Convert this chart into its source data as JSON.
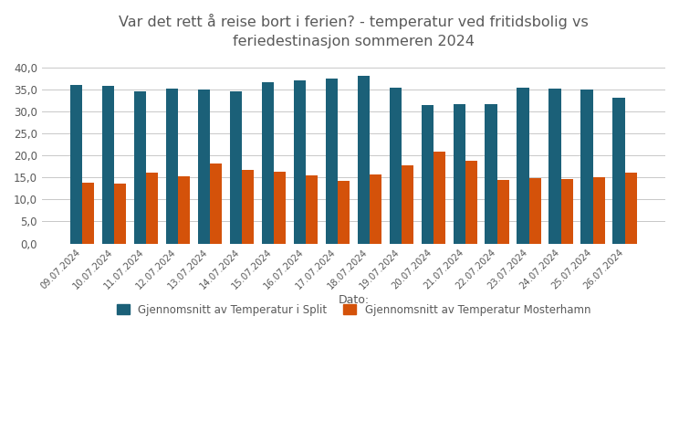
{
  "title": "Var det rett å reise bort i ferien? - temperatur ved fritidsbolig vs\nferiedestinasjon sommeren 2024",
  "xlabel": "Dato:",
  "split_label": "Gjennomsnitt av Temperatur i Split",
  "mosterhamn_label": "Gjennomsnitt av Temperatur Mosterhamn",
  "dates": [
    "09.07.2024",
    "10.07.2024",
    "11.07.2024",
    "12.07.2024",
    "13.07.2024",
    "14.07.2024",
    "15.07.2024",
    "16.07.2024",
    "17.07.2024",
    "18.07.2024",
    "19.07.2024",
    "20.07.2024",
    "21.07.2024",
    "22.07.2024",
    "23.07.2024",
    "24.07.2024",
    "25.07.2024",
    "26.07.2024"
  ],
  "split_temps": [
    36.0,
    35.7,
    34.5,
    35.2,
    35.0,
    34.5,
    36.5,
    37.0,
    37.5,
    38.0,
    35.4,
    31.5,
    31.6,
    31.6,
    35.3,
    35.1,
    34.9,
    33.0
  ],
  "mosterhamn_temps": [
    13.8,
    13.6,
    16.1,
    15.3,
    18.2,
    16.6,
    16.2,
    15.4,
    14.3,
    15.6,
    17.7,
    20.8,
    18.8,
    14.5,
    14.8,
    14.6,
    15.0,
    16.0
  ],
  "split_color": "#1B6078",
  "mosterhamn_color": "#D4520A",
  "background_color": "#FFFFFF",
  "ylim": [
    0,
    42
  ],
  "yticks": [
    0.0,
    5.0,
    10.0,
    15.0,
    20.0,
    25.0,
    30.0,
    35.0,
    40.0
  ],
  "ytick_labels": [
    "0,0",
    "5,0",
    "10,0",
    "15,0",
    "20,0",
    "25,0",
    "30,0",
    "35,0",
    "40,0"
  ],
  "title_color": "#595959",
  "axis_label_color": "#595959",
  "grid_color": "#C8C8C8"
}
